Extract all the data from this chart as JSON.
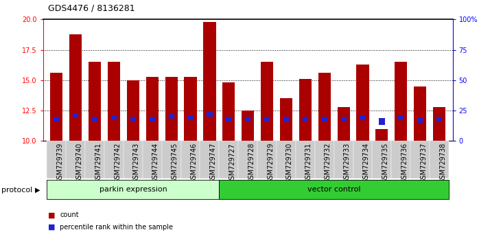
{
  "title": "GDS4476 / 8136281",
  "samples": [
    "GSM729739",
    "GSM729740",
    "GSM729741",
    "GSM729742",
    "GSM729743",
    "GSM729744",
    "GSM729745",
    "GSM729746",
    "GSM729747",
    "GSM729727",
    "GSM729728",
    "GSM729729",
    "GSM729730",
    "GSM729731",
    "GSM729732",
    "GSM729733",
    "GSM729734",
    "GSM729735",
    "GSM729736",
    "GSM729737",
    "GSM729738"
  ],
  "count_values": [
    15.6,
    18.8,
    16.5,
    16.5,
    15.0,
    15.3,
    15.3,
    15.3,
    19.8,
    14.8,
    12.5,
    16.5,
    13.5,
    15.1,
    15.6,
    12.8,
    16.3,
    11.0,
    16.5,
    14.5,
    12.8
  ],
  "percentile_values": [
    11.6,
    11.9,
    11.6,
    11.7,
    11.6,
    11.6,
    11.8,
    11.7,
    12.0,
    11.6,
    11.6,
    11.6,
    11.6,
    11.6,
    11.6,
    11.6,
    11.7,
    11.3,
    11.7,
    11.5,
    11.6
  ],
  "percentile_heights": [
    0.4,
    0.4,
    0.4,
    0.4,
    0.4,
    0.4,
    0.4,
    0.4,
    0.4,
    0.4,
    0.4,
    0.4,
    0.4,
    0.4,
    0.4,
    0.4,
    0.4,
    0.6,
    0.4,
    0.4,
    0.4
  ],
  "ylim": [
    10,
    20
  ],
  "yticks_left": [
    10,
    12.5,
    15,
    17.5,
    20
  ],
  "yticks_right": [
    0,
    25,
    50,
    75,
    100
  ],
  "ytick_right_labels": [
    "0",
    "25",
    "50",
    "75",
    "100%"
  ],
  "bar_color": "#aa0000",
  "blue_color": "#2222cc",
  "parkin_n": 9,
  "vector_n": 12,
  "parkin_color": "#ccffcc",
  "vector_color": "#33cc33",
  "protocol_label": "protocol",
  "parkin_label": "parkin expression",
  "vector_label": "vector control",
  "legend_count": "count",
  "legend_pct": "percentile rank within the sample",
  "title_fontsize": 9,
  "tick_fontsize": 7,
  "label_fontsize": 8
}
